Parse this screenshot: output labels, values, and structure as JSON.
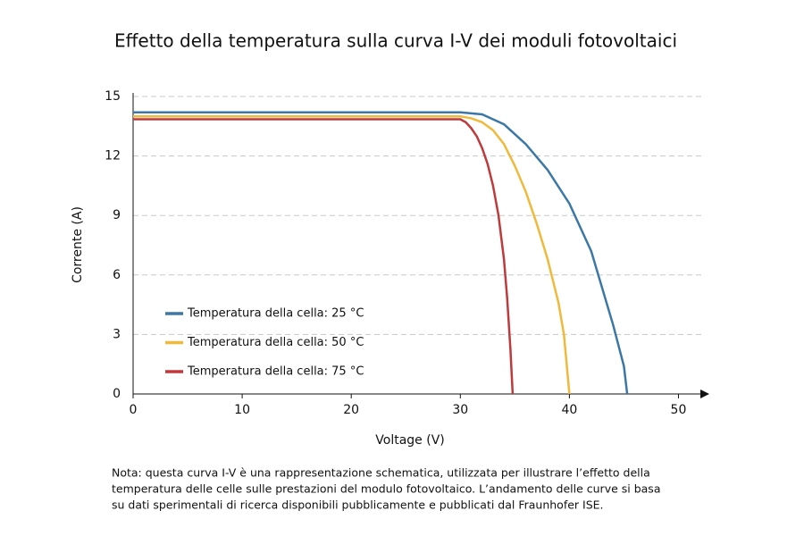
{
  "chart_data": {
    "type": "line",
    "title": "Effetto della temperatura sulla curva I-V dei moduli fotovoltaici",
    "x_label": "Voltage (V)",
    "y_label": "Corrente (A)",
    "xlim": [
      0,
      52.5
    ],
    "xticks": [
      0,
      10,
      20,
      30,
      40,
      50
    ],
    "ylim": [
      0,
      15
    ],
    "yticks": [
      0,
      3,
      6,
      9,
      12,
      15
    ],
    "grid": true,
    "legend": "lower left",
    "series": [
      {
        "name": "Temperatura della cella: 25 °C",
        "color": "#3b78a8",
        "x": [
          0,
          30,
          32,
          34,
          36,
          38,
          40,
          42,
          44,
          45,
          45.3
        ],
        "values": [
          14.2,
          14.2,
          14.1,
          13.6,
          12.6,
          11.3,
          9.6,
          7.2,
          3.5,
          1.4,
          0
        ]
      },
      {
        "name": "Temperatura della cella: 50 °C",
        "color": "#f0b93a",
        "x": [
          0,
          30,
          31,
          32,
          33,
          34,
          35,
          36,
          37,
          38,
          39,
          39.5,
          40
        ],
        "values": [
          14,
          14,
          13.9,
          13.7,
          13.3,
          12.6,
          11.5,
          10.2,
          8.6,
          6.8,
          4.6,
          3,
          0
        ]
      },
      {
        "name": "Temperatura della cella: 75 °C",
        "color": "#c0393b",
        "x": [
          0,
          30,
          30.5,
          31,
          31.5,
          32,
          32.5,
          33,
          33.5,
          34,
          34.3,
          34.6,
          34.8
        ],
        "values": [
          13.85,
          13.85,
          13.7,
          13.4,
          13,
          12.4,
          11.6,
          10.5,
          9,
          6.8,
          4.8,
          2.2,
          0
        ]
      }
    ],
    "note": [
      "Nota: questa curva I-V è una rappresentazione schematica, utilizzata per illustrare l’effetto della",
      "temperatura delle celle sulle prestazioni del modulo fotovoltaico. L’andamento delle curve si basa",
      "su dati sperimentali di ricerca disponibili pubblicamente e pubblicati dal Fraunhofer ISE."
    ]
  }
}
